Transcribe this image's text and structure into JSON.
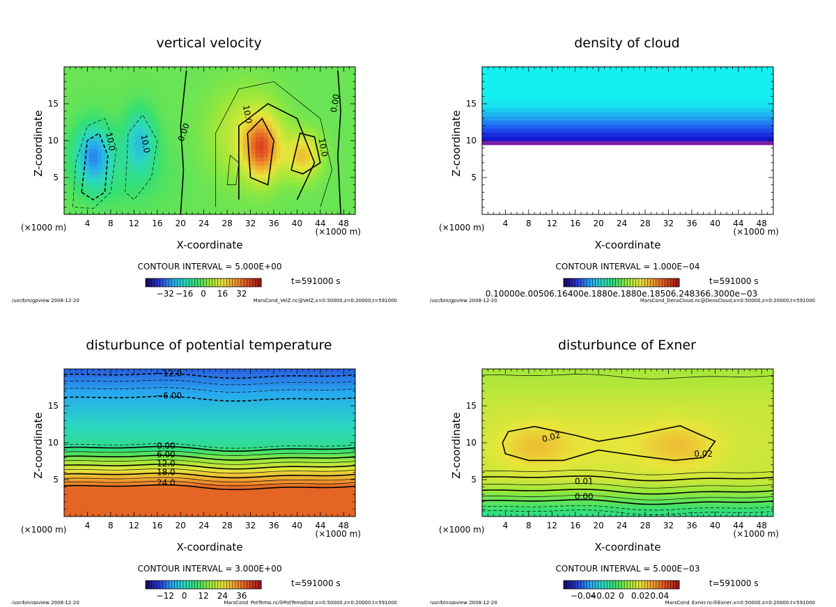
{
  "chart_data": [
    {
      "type": "heatmap",
      "title": "vertical velocity",
      "xlabel": "X-coordinate",
      "ylabel": "Z-coordinate",
      "xunit_left": "(×1000 m)",
      "xunit_right": "(×1000 m)",
      "xlim": [
        0,
        50
      ],
      "ylim": [
        0,
        20
      ],
      "xticks": [
        "4",
        "8",
        "12",
        "16",
        "20",
        "24",
        "28",
        "32",
        "36",
        "40",
        "44",
        "48"
      ],
      "yticks": [
        "5",
        "10",
        "15"
      ],
      "contour_interval": "CONTOUR INTERVAL = 5.000E+00",
      "time": "t=591000 s",
      "colorbar_labels": [
        "−32",
        "−16",
        "0",
        "16",
        "32"
      ],
      "colormap": [
        "#1a0a6a",
        "#2a3cd8",
        "#28a8f0",
        "#2ad8c0",
        "#36e070",
        "#9ae83a",
        "#e8e53a",
        "#f0a030",
        "#e05020",
        "#a01818"
      ],
      "field": "velocity",
      "contour_labels": [
        {
          "text": "10.0",
          "x": 13.5,
          "z": 9.5,
          "rot": 80
        },
        {
          "text": "10.0",
          "x": 7.5,
          "z": 9.8,
          "rot": 80
        },
        {
          "text": "0.00",
          "x": 21,
          "z": 11,
          "rot": -70
        },
        {
          "text": "10.0",
          "x": 31,
          "z": 13.5,
          "rot": 80
        },
        {
          "text": "10.0",
          "x": 44,
          "z": 9,
          "rot": 80
        },
        {
          "text": "0.00",
          "x": 47,
          "z": 15,
          "rot": -80
        }
      ],
      "footer_left": "/usr/bin/gpview  2008-12-20",
      "footer_right": "MarsCond_VelZ.nc@VelZ,x=0:50000,z=0:20000,t=591000"
    },
    {
      "type": "heatmap",
      "title": "density of cloud",
      "xlabel": "X-coordinate",
      "ylabel": "Z-coordinate",
      "xunit_left": "(×1000 m)",
      "xunit_right": "(×1000 m)",
      "xlim": [
        0,
        50
      ],
      "ylim": [
        0,
        20
      ],
      "xticks": [
        "4",
        "8",
        "12",
        "16",
        "20",
        "24",
        "28",
        "32",
        "36",
        "40",
        "44",
        "48"
      ],
      "yticks": [
        "5",
        "10",
        "15"
      ],
      "contour_interval": "CONTOUR INTERVAL = 1.000E−04",
      "time": "t=591000 s",
      "colorbar_labels": [
        "0.10000e.00506.16400e.1880e.1880e.18506.248366.3000e−03"
      ],
      "colormap": [
        "#1a0a6a",
        "#2a3cd8",
        "#28a8f0",
        "#2ad8c0",
        "#36e070",
        "#9ae83a",
        "#e8e53a",
        "#f0a030",
        "#e05020",
        "#a01818"
      ],
      "field": "cloud",
      "contour_labels": [],
      "footer_left": "/usr/bin/gpview  2008-12-20",
      "footer_right": "MarsCond_DensCloud.nc@DensCloud,x=0:50000,z=0:20000,t=591000"
    },
    {
      "type": "heatmap",
      "title": "disturbunce of potential temperature",
      "xlabel": "X-coordinate",
      "ylabel": "Z-coordinate",
      "xunit_left": "(×1000 m)",
      "xunit_right": "(×1000 m)",
      "xlim": [
        0,
        50
      ],
      "ylim": [
        0,
        20
      ],
      "xticks": [
        "4",
        "8",
        "12",
        "16",
        "20",
        "24",
        "28",
        "32",
        "36",
        "40",
        "44",
        "48"
      ],
      "yticks": [
        "5",
        "10",
        "15"
      ],
      "contour_interval": "CONTOUR INTERVAL = 3.000E+00",
      "time": "t=591000 s",
      "colorbar_labels": [
        "−12",
        "0",
        "12",
        "24",
        "36"
      ],
      "colormap": [
        "#1a0a6a",
        "#2a3cd8",
        "#28a8f0",
        "#2ad8c0",
        "#36e070",
        "#9ae83a",
        "#e8e53a",
        "#f0a030",
        "#e05020",
        "#a01818"
      ],
      "field": "theta",
      "contour_labels": [
        {
          "text": "−12.0",
          "x": 18,
          "z": 19,
          "rot": 0
        },
        {
          "text": "−6.00",
          "x": 18,
          "z": 16,
          "rot": 0
        },
        {
          "text": "0.00",
          "x": 17.5,
          "z": 9.2,
          "rot": 0
        },
        {
          "text": "6.00",
          "x": 17.5,
          "z": 8.0,
          "rot": 0
        },
        {
          "text": "12.0",
          "x": 17.5,
          "z": 6.8,
          "rot": 0
        },
        {
          "text": "18.0",
          "x": 17.5,
          "z": 5.6,
          "rot": 0
        },
        {
          "text": "24.0",
          "x": 17.5,
          "z": 4.2,
          "rot": 0
        }
      ],
      "footer_left": "/usr/bin/gpview  2008-12-20",
      "footer_right": "MarsCond_PotTemp.nc@PotTempDist,x=0:50000,z=0:20000,t=591000"
    },
    {
      "type": "heatmap",
      "title": "disturbunce of Exner",
      "xlabel": "X-coordinate",
      "ylabel": "Z-coordinate",
      "xunit_left": "(×1000 m)",
      "xunit_right": "(×1000 m)",
      "xlim": [
        0,
        50
      ],
      "ylim": [
        0,
        20
      ],
      "xticks": [
        "4",
        "8",
        "12",
        "16",
        "20",
        "24",
        "28",
        "32",
        "36",
        "40",
        "44",
        "48"
      ],
      "yticks": [
        "5",
        "10",
        "15"
      ],
      "contour_interval": "CONTOUR INTERVAL = 5.000E−03",
      "time": "t=591000 s",
      "colorbar_labels": [
        "−0.04",
        "−0.02",
        "0",
        "0.02",
        "0.04"
      ],
      "colormap": [
        "#1a0a6a",
        "#2a3cd8",
        "#28a8f0",
        "#2ad8c0",
        "#36e070",
        "#9ae83a",
        "#e8e53a",
        "#f0a030",
        "#e05020",
        "#a01818"
      ],
      "field": "exner",
      "contour_labels": [
        {
          "text": "0.02",
          "x": 12,
          "z": 10.4,
          "rot": -15
        },
        {
          "text": "0.02",
          "x": 38,
          "z": 8.1,
          "rot": 0
        },
        {
          "text": "0.01",
          "x": 17.5,
          "z": 4.4,
          "rot": 0
        },
        {
          "text": "0.00",
          "x": 17.5,
          "z": 2.3,
          "rot": 0
        }
      ],
      "footer_left": "/usr/bin/gpview  2008-12-20",
      "footer_right": "MarsCond_Exner.nc@Exner,x=0:50000,z=0:20000,t=591000"
    }
  ]
}
